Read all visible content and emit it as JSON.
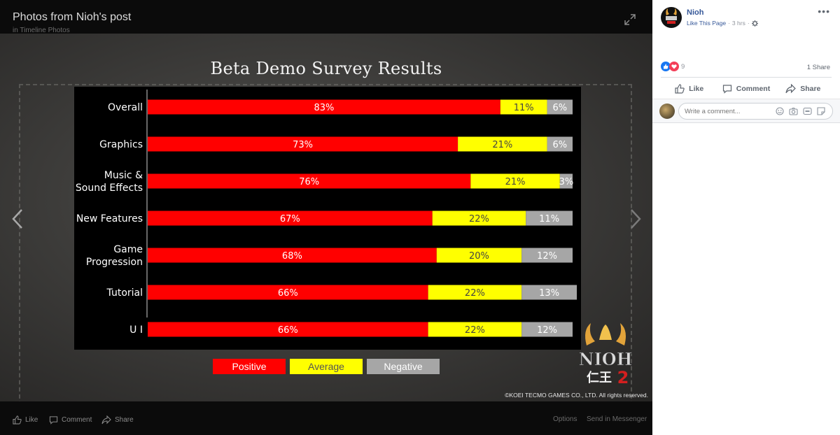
{
  "viewer": {
    "title": "Photos from Nioh's post",
    "subtitle": "in Timeline Photos",
    "actions": {
      "like": "Like",
      "comment": "Comment",
      "share": "Share",
      "options": "Options",
      "send": "Send in Messenger"
    }
  },
  "photo": {
    "copyright": "©KOEI TECMO GAMES CO., LTD. All rights reserved.",
    "logo_text": "NIOH",
    "logo_kanji": "仁王",
    "logo_number": "2"
  },
  "legend": {
    "positive": "Positive",
    "average": "Average",
    "negative": "Negative"
  },
  "colors": {
    "positive": "#ff0000",
    "average": "#ffff00",
    "negative": "#a6a6a6",
    "link": "#365899"
  },
  "chart_data": {
    "type": "bar",
    "title": "Beta Demo Survey Results",
    "stacked": true,
    "orientation": "horizontal",
    "categories": [
      [
        "Overall"
      ],
      [
        "Graphics"
      ],
      [
        "Music &",
        "Sound Effects"
      ],
      [
        "New Features"
      ],
      [
        "Game",
        "Progression"
      ],
      [
        "Tutorial"
      ],
      [
        "U I"
      ]
    ],
    "series": [
      {
        "name": "Positive",
        "values": [
          83,
          73,
          76,
          67,
          68,
          66,
          66
        ],
        "labels": [
          "83%",
          "73%",
          "76%",
          "67%",
          "68%",
          "66%",
          "66%"
        ]
      },
      {
        "name": "Average",
        "values": [
          11,
          21,
          21,
          22,
          20,
          22,
          22
        ],
        "labels": [
          "11%",
          "21%",
          "21%",
          "22%",
          "20%",
          "22%",
          "22%"
        ]
      },
      {
        "name": "Negative",
        "values": [
          6,
          6,
          3,
          11,
          12,
          13,
          12
        ],
        "labels": [
          "6%",
          "6%",
          "3%",
          "11%",
          "12%",
          "13%",
          "12%"
        ]
      }
    ]
  },
  "sidebar": {
    "page_name": "Nioh",
    "like_page": "Like This Page",
    "time": "3 hrs",
    "reactions_count": "9",
    "shares": "1 Share",
    "actions": {
      "like": "Like",
      "comment": "Comment",
      "share": "Share"
    },
    "comment_placeholder": "Write a comment..."
  }
}
